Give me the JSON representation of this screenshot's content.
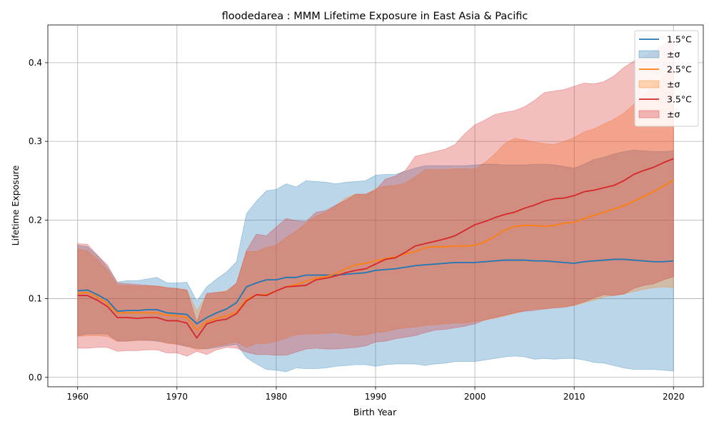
{
  "chart_data": {
    "type": "line",
    "title": "floodedarea : MMM Lifetime Exposure in East Asia & Pacific",
    "xlabel": "Birth Year",
    "ylabel": "Lifetime Exposure",
    "xlim": [
      1957,
      2023
    ],
    "ylim": [
      -0.012,
      0.448
    ],
    "xticks": [
      1960,
      1970,
      1980,
      1990,
      2000,
      2010,
      2020
    ],
    "xtick_labels": [
      "1960",
      "1970",
      "1980",
      "1990",
      "2000",
      "2010",
      "2020"
    ],
    "yticks": [
      0.0,
      0.1,
      0.2,
      0.3,
      0.4
    ],
    "ytick_labels": [
      "0.0",
      "0.1",
      "0.2",
      "0.3",
      "0.4"
    ],
    "grid": true,
    "legend_position": "upper right",
    "x": [
      1960,
      1961,
      1962,
      1963,
      1964,
      1965,
      1966,
      1967,
      1968,
      1969,
      1970,
      1971,
      1972,
      1973,
      1974,
      1975,
      1976,
      1977,
      1978,
      1979,
      1980,
      1981,
      1982,
      1983,
      1984,
      1985,
      1986,
      1987,
      1988,
      1989,
      1990,
      1991,
      1992,
      1993,
      1994,
      1995,
      1996,
      1997,
      1998,
      1999,
      2000,
      2001,
      2002,
      2003,
      2004,
      2005,
      2006,
      2007,
      2008,
      2009,
      2010,
      2011,
      2012,
      2013,
      2014,
      2015,
      2016,
      2017,
      2018,
      2019,
      2020
    ],
    "series": [
      {
        "name": "1.5°C",
        "band_label": "±σ",
        "color": "#1f77b4",
        "fill": "#1f77b4",
        "mean": [
          0.11,
          0.111,
          0.105,
          0.098,
          0.084,
          0.085,
          0.085,
          0.086,
          0.086,
          0.082,
          0.081,
          0.08,
          0.068,
          0.076,
          0.082,
          0.087,
          0.095,
          0.115,
          0.12,
          0.124,
          0.124,
          0.127,
          0.127,
          0.13,
          0.13,
          0.13,
          0.13,
          0.131,
          0.132,
          0.133,
          0.136,
          0.137,
          0.138,
          0.14,
          0.142,
          0.143,
          0.144,
          0.145,
          0.146,
          0.146,
          0.146,
          0.147,
          0.148,
          0.149,
          0.149,
          0.149,
          0.148,
          0.148,
          0.147,
          0.146,
          0.145,
          0.147,
          0.148,
          0.149,
          0.15,
          0.15,
          0.149,
          0.148,
          0.147,
          0.147,
          0.148
        ],
        "upper": [
          0.168,
          0.166,
          0.155,
          0.14,
          0.121,
          0.123,
          0.123,
          0.125,
          0.127,
          0.12,
          0.12,
          0.121,
          0.097,
          0.115,
          0.125,
          0.134,
          0.147,
          0.208,
          0.224,
          0.237,
          0.239,
          0.246,
          0.242,
          0.25,
          0.249,
          0.248,
          0.246,
          0.248,
          0.249,
          0.25,
          0.257,
          0.258,
          0.258,
          0.262,
          0.266,
          0.269,
          0.269,
          0.269,
          0.269,
          0.269,
          0.27,
          0.271,
          0.271,
          0.27,
          0.27,
          0.27,
          0.271,
          0.271,
          0.27,
          0.268,
          0.266,
          0.271,
          0.277,
          0.28,
          0.284,
          0.287,
          0.289,
          0.288,
          0.287,
          0.287,
          0.288
        ],
        "lower": [
          0.053,
          0.055,
          0.055,
          0.055,
          0.046,
          0.046,
          0.047,
          0.047,
          0.046,
          0.044,
          0.042,
          0.039,
          0.037,
          0.036,
          0.038,
          0.04,
          0.042,
          0.025,
          0.017,
          0.01,
          0.009,
          0.007,
          0.012,
          0.011,
          0.011,
          0.012,
          0.014,
          0.015,
          0.016,
          0.016,
          0.014,
          0.016,
          0.017,
          0.017,
          0.017,
          0.015,
          0.017,
          0.018,
          0.02,
          0.02,
          0.02,
          0.022,
          0.024,
          0.026,
          0.027,
          0.026,
          0.023,
          0.024,
          0.023,
          0.024,
          0.024,
          0.022,
          0.019,
          0.018,
          0.015,
          0.012,
          0.01,
          0.01,
          0.01,
          0.009,
          0.008
        ]
      },
      {
        "name": "2.5°C",
        "band_label": "±σ",
        "color": "#ff7f0e",
        "fill": "#ff7f0e",
        "mean": [
          0.107,
          0.108,
          0.102,
          0.094,
          0.082,
          0.082,
          0.082,
          0.082,
          0.082,
          0.079,
          0.078,
          0.076,
          0.06,
          0.071,
          0.075,
          0.078,
          0.083,
          0.099,
          0.105,
          0.105,
          0.11,
          0.115,
          0.118,
          0.122,
          0.126,
          0.128,
          0.132,
          0.138,
          0.143,
          0.145,
          0.148,
          0.151,
          0.153,
          0.157,
          0.16,
          0.165,
          0.166,
          0.166,
          0.167,
          0.167,
          0.168,
          0.172,
          0.179,
          0.187,
          0.192,
          0.193,
          0.193,
          0.192,
          0.193,
          0.196,
          0.197,
          0.202,
          0.206,
          0.21,
          0.214,
          0.218,
          0.224,
          0.23,
          0.236,
          0.243,
          0.251
        ],
        "upper": [
          0.163,
          0.161,
          0.15,
          0.136,
          0.117,
          0.117,
          0.116,
          0.116,
          0.116,
          0.114,
          0.113,
          0.111,
          0.084,
          0.105,
          0.108,
          0.11,
          0.119,
          0.16,
          0.16,
          0.165,
          0.168,
          0.178,
          0.186,
          0.196,
          0.205,
          0.21,
          0.218,
          0.228,
          0.233,
          0.232,
          0.24,
          0.243,
          0.244,
          0.247,
          0.255,
          0.264,
          0.264,
          0.264,
          0.265,
          0.265,
          0.265,
          0.273,
          0.284,
          0.297,
          0.304,
          0.302,
          0.299,
          0.297,
          0.296,
          0.3,
          0.305,
          0.312,
          0.316,
          0.322,
          0.328,
          0.336,
          0.347,
          0.358,
          0.37,
          0.382,
          0.395
        ],
        "lower": [
          0.052,
          0.053,
          0.053,
          0.052,
          0.046,
          0.046,
          0.047,
          0.047,
          0.047,
          0.043,
          0.042,
          0.04,
          0.035,
          0.037,
          0.04,
          0.042,
          0.045,
          0.038,
          0.043,
          0.043,
          0.046,
          0.05,
          0.054,
          0.055,
          0.055,
          0.056,
          0.057,
          0.055,
          0.053,
          0.054,
          0.057,
          0.058,
          0.061,
          0.063,
          0.064,
          0.066,
          0.067,
          0.068,
          0.069,
          0.069,
          0.071,
          0.073,
          0.075,
          0.078,
          0.081,
          0.085,
          0.087,
          0.087,
          0.089,
          0.09,
          0.091,
          0.095,
          0.098,
          0.102,
          0.104,
          0.106,
          0.109,
          0.112,
          0.114,
          0.115,
          0.114
        ]
      },
      {
        "name": "3.5°C",
        "band_label": "±σ",
        "color": "#d62728",
        "fill": "#d62728",
        "mean": [
          0.104,
          0.104,
          0.098,
          0.09,
          0.076,
          0.076,
          0.075,
          0.076,
          0.076,
          0.072,
          0.072,
          0.069,
          0.05,
          0.068,
          0.072,
          0.074,
          0.081,
          0.097,
          0.105,
          0.104,
          0.11,
          0.115,
          0.116,
          0.117,
          0.124,
          0.126,
          0.129,
          0.133,
          0.136,
          0.138,
          0.144,
          0.15,
          0.152,
          0.159,
          0.167,
          0.17,
          0.173,
          0.176,
          0.18,
          0.187,
          0.194,
          0.198,
          0.203,
          0.207,
          0.21,
          0.215,
          0.219,
          0.224,
          0.227,
          0.228,
          0.231,
          0.236,
          0.238,
          0.241,
          0.244,
          0.25,
          0.258,
          0.263,
          0.267,
          0.273,
          0.278
        ],
        "upper": [
          0.17,
          0.169,
          0.155,
          0.143,
          0.12,
          0.119,
          0.118,
          0.117,
          0.116,
          0.114,
          0.113,
          0.111,
          0.07,
          0.107,
          0.108,
          0.109,
          0.12,
          0.161,
          0.182,
          0.18,
          0.191,
          0.202,
          0.199,
          0.198,
          0.21,
          0.212,
          0.219,
          0.225,
          0.233,
          0.233,
          0.238,
          0.252,
          0.256,
          0.263,
          0.281,
          0.284,
          0.287,
          0.29,
          0.296,
          0.31,
          0.321,
          0.327,
          0.334,
          0.337,
          0.339,
          0.344,
          0.352,
          0.362,
          0.364,
          0.366,
          0.37,
          0.374,
          0.373,
          0.376,
          0.383,
          0.394,
          0.402,
          0.408,
          0.415,
          0.423,
          0.428
        ],
        "lower": [
          0.037,
          0.037,
          0.038,
          0.038,
          0.033,
          0.034,
          0.034,
          0.035,
          0.035,
          0.031,
          0.031,
          0.027,
          0.033,
          0.029,
          0.035,
          0.038,
          0.037,
          0.032,
          0.029,
          0.029,
          0.028,
          0.028,
          0.032,
          0.036,
          0.037,
          0.036,
          0.036,
          0.037,
          0.038,
          0.04,
          0.045,
          0.046,
          0.049,
          0.051,
          0.053,
          0.057,
          0.06,
          0.061,
          0.063,
          0.065,
          0.068,
          0.073,
          0.076,
          0.079,
          0.082,
          0.084,
          0.085,
          0.087,
          0.088,
          0.089,
          0.092,
          0.096,
          0.101,
          0.105,
          0.104,
          0.106,
          0.113,
          0.117,
          0.119,
          0.124,
          0.128
        ]
      }
    ]
  }
}
